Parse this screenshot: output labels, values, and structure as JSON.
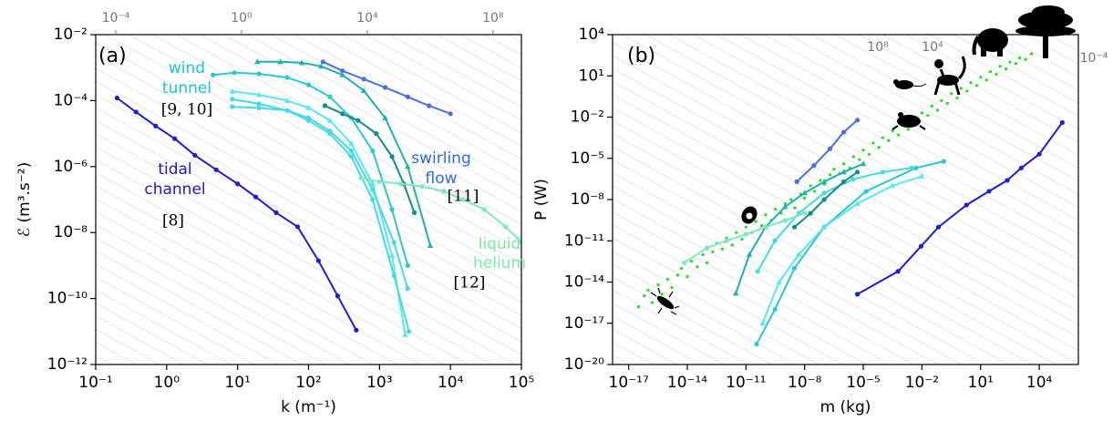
{
  "chart_data": [
    {
      "type": "line",
      "xscale": "log",
      "yscale": "log",
      "xlabel": "k (m⁻¹)",
      "ylabel": "ℰ (m³.s⁻²)",
      "xlim": [
        0.1,
        100000
      ],
      "ylim": [
        1e-12,
        0.01
      ],
      "xticks": [
        {
          "value": 0.1,
          "label": "10⁻¹"
        },
        {
          "value": 1,
          "label": "10⁰"
        },
        {
          "value": 10,
          "label": "10¹"
        },
        {
          "value": 100,
          "label": "10²"
        },
        {
          "value": 1000,
          "label": "10³"
        },
        {
          "value": 10000,
          "label": "10⁴"
        },
        {
          "value": 100000,
          "label": "10⁵"
        }
      ],
      "yticks": [
        {
          "value": 1e-12,
          "label": "10⁻¹²"
        },
        {
          "value": 1e-10,
          "label": "10⁻¹⁰"
        },
        {
          "value": 1e-08,
          "label": "10⁻⁸"
        },
        {
          "value": 1e-06,
          "label": "10⁻⁶"
        },
        {
          "value": 0.0001,
          "label": "10⁻⁴"
        },
        {
          "value": 0.01,
          "label": "10⁻²"
        }
      ],
      "x2lim": [
        2.3e-05,
        800000000
      ],
      "x2ticks": [
        {
          "value": 0.0001,
          "label": "10⁻⁴"
        },
        {
          "value": 1,
          "label": "10⁰"
        },
        {
          "value": 10000,
          "label": "10⁴"
        },
        {
          "value": 100000000,
          "label": "10⁸"
        }
      ],
      "annotations": [
        {
          "text": "(a)",
          "color": "#000000"
        },
        {
          "text": "wind",
          "color": "#1cc4d4"
        },
        {
          "text": "tunnel",
          "color": "#1cc4d4"
        },
        {
          "text": "[9, 10]",
          "color": "#000000",
          "font": "serif"
        },
        {
          "text": "tidal",
          "color": "#1a1acc"
        },
        {
          "text": "channel",
          "color": "#1a1acc"
        },
        {
          "text": "[8]",
          "color": "#000000",
          "font": "serif"
        },
        {
          "text": "swirling",
          "color": "#2f6be0"
        },
        {
          "text": "flow",
          "color": "#2f6be0"
        },
        {
          "text": "[11]",
          "color": "#000000",
          "font": "serif"
        },
        {
          "text": "liquid",
          "color": "#7ee8a8"
        },
        {
          "text": "helium",
          "color": "#7ee8a8"
        },
        {
          "text": "[12]",
          "color": "#000000",
          "font": "serif"
        }
      ],
      "series": [
        {
          "color": "#1f1fd0",
          "marker": "o",
          "x": [
            0.2,
            0.37,
            0.7,
            1.3,
            2.5,
            5,
            10,
            18,
            35,
            70,
            138,
            257,
            470
          ],
          "values": [
            0.00012,
            4.5e-05,
            1.7e-05,
            7e-06,
            2.2e-06,
            8e-07,
            3e-07,
            1.2e-07,
            4e-08,
            1.5e-08,
            1.4e-09,
            1.2e-10,
            1.1e-11
          ]
        },
        {
          "color": "#4a6fdc",
          "marker": "o",
          "x": [
            160,
            300,
            600,
            1200,
            2500,
            5000,
            10000
          ],
          "values": [
            0.0015,
            0.0008,
            0.00045,
            0.00025,
            0.00013,
            7e-05,
            4e-05
          ]
        },
        {
          "color": "#20b0b0",
          "marker": "^",
          "x": [
            19,
            40,
            80,
            150,
            300,
            600,
            1200,
            2500,
            5200
          ],
          "values": [
            0.0015,
            0.0015,
            0.0014,
            0.0011,
            0.0006,
            0.0002,
            3e-05,
            1e-06,
            4e-09
          ]
        },
        {
          "color": "#2cc8d0",
          "marker": "o",
          "x": [
            4.5,
            9,
            20,
            50,
            100,
            200,
            400,
            800,
            1500,
            2500
          ],
          "values": [
            0.0006,
            0.0007,
            0.00065,
            0.0005,
            0.0003,
            0.00013,
            3e-05,
            3e-06,
            5e-08,
            1e-09
          ]
        },
        {
          "color": "#5ae8f0",
          "marker": "^",
          "x": [
            8.4,
            20,
            50,
            100,
            200,
            400,
            800,
            1500,
            2300
          ],
          "values": [
            0.00019,
            0.00015,
            0.0001,
            6e-05,
            2.5e-05,
            5e-06,
            3e-07,
            2e-09,
            8e-12
          ]
        },
        {
          "color": "#3fdce0",
          "marker": "o",
          "x": [
            8.4,
            20,
            50,
            100,
            200,
            400,
            800,
            1600,
            2600
          ],
          "values": [
            0.00011,
            8e-05,
            5e-05,
            2.5e-05,
            1e-05,
            2e-06,
            1e-07,
            5e-10,
            1e-11
          ]
        },
        {
          "color": "#48d8e8",
          "marker": "o",
          "x": [
            8.4,
            20,
            50,
            100,
            200,
            400,
            800,
            1600,
            2500
          ],
          "values": [
            6.5e-05,
            6e-05,
            5e-05,
            3e-05,
            1.2e-05,
            3e-06,
            2e-07,
            5e-09,
            2e-10
          ]
        },
        {
          "color": "#138c8c",
          "marker": "o",
          "x": [
            170,
            300,
            500,
            900,
            1500,
            2200,
            3100
          ],
          "values": [
            7e-05,
            4e-05,
            2.5e-05,
            1e-05,
            2e-06,
            3e-07,
            4e-08
          ]
        },
        {
          "color": "#7de8c4",
          "marker": "o",
          "x": [
            550,
            1000,
            2000,
            4000,
            8000,
            15000,
            30000,
            60000,
            100000
          ],
          "values": [
            4.5e-07,
            3.5e-07,
            3e-07,
            2.5e-07,
            1.8e-07,
            1e-07,
            5e-08,
            1.5e-08,
            5e-09
          ]
        }
      ]
    },
    {
      "type": "line",
      "xscale": "log",
      "yscale": "log",
      "xlabel": "m (kg)",
      "ylabel": "P (W)",
      "xlim": [
        1.5e-18,
        1000000
      ],
      "ylim": [
        1e-20,
        10000
      ],
      "xticks": [
        {
          "value": 1e-17,
          "label": "10⁻¹⁷"
        },
        {
          "value": 1e-14,
          "label": "10⁻¹⁴"
        },
        {
          "value": 1e-11,
          "label": "10⁻¹¹"
        },
        {
          "value": 1e-08,
          "label": "10⁻⁸"
        },
        {
          "value": 1e-05,
          "label": "10⁻⁵"
        },
        {
          "value": 0.01,
          "label": "10⁻²"
        },
        {
          "value": 10,
          "label": "10¹"
        },
        {
          "value": 10000,
          "label": "10⁴"
        }
      ],
      "yticks": [
        {
          "value": 1e-20,
          "label": "10⁻²⁰"
        },
        {
          "value": 1e-17,
          "label": "10⁻¹⁷"
        },
        {
          "value": 1e-14,
          "label": "10⁻¹⁴"
        },
        {
          "value": 1e-11,
          "label": "10⁻¹¹"
        },
        {
          "value": 1e-08,
          "label": "10⁻⁸"
        },
        {
          "value": 1e-05,
          "label": "10⁻⁵"
        },
        {
          "value": 0.01,
          "label": "10⁻²"
        },
        {
          "value": 10,
          "label": "10¹"
        },
        {
          "value": 10000,
          "label": "10⁴"
        }
      ],
      "annotations": [
        {
          "text": "(b)",
          "color": "#000000"
        },
        {
          "text": "10⁸",
          "color": "#777777"
        },
        {
          "text": "10⁴",
          "color": "#777777"
        },
        {
          "text": "10⁻⁴",
          "color": "#777777"
        }
      ],
      "series": [
        {
          "type": "scatter",
          "color": "#22dd22",
          "x": [
            3.2e-17,
            6.3e-17,
            1e-16,
            1.6e-16,
            3.2e-16,
            5e-16,
            1e-15,
            1.6e-15,
            3.2e-15,
            5e-15,
            1e-14,
            1.6e-14,
            3.2e-14,
            6.3e-14,
            1e-13,
            2e-13,
            3.2e-13,
            6.3e-13,
            1e-12,
            2e-12,
            3.2e-12,
            6.3e-12,
            1e-11,
            2e-11,
            3.2e-11,
            6.3e-11,
            1e-10,
            2e-10,
            3.2e-10,
            6.3e-10,
            1e-09,
            2e-09,
            3.2e-09,
            6.3e-09,
            1e-08,
            2e-08,
            3.2e-08,
            6.3e-08,
            1e-07,
            2e-07,
            3.2e-07,
            6.3e-07,
            1e-06,
            2e-06,
            3.2e-06,
            6.3e-06,
            1e-05,
            2e-05,
            3.2e-05,
            6.3e-05,
            0.0001,
            0.0002,
            0.00032,
            0.00063,
            0.001,
            0.002,
            0.0032,
            0.0063,
            0.01,
            0.02,
            0.032,
            0.063,
            0.1,
            0.2,
            0.32,
            0.63,
            1,
            2,
            3.2,
            6.3,
            10,
            20,
            32,
            63,
            100,
            200,
            320,
            630,
            1000,
            2000,
            4000
          ],
          "values": [
            1.6e-16,
            1e-15,
            2.5e-15,
            3.2e-16,
            6.3e-15,
            1.3e-15,
            1.6e-14,
            4e-15,
            3.2e-14,
            1e-13,
            2.5e-14,
            3.2e-13,
            1.3e-13,
            1e-12,
            2.5e-13,
            1.6e-12,
            6.3e-12,
            2.5e-12,
            1.6e-11,
            5e-12,
            4e-11,
            1.3e-11,
            1e-10,
            4e-11,
            2.5e-10,
            1.3e-10,
            7.9e-10,
            3.2e-10,
            2e-09,
            1e-09,
            5e-09,
            1e-08,
            2.5e-09,
            2.5e-08,
            1.3e-08,
            1e-07,
            4e-08,
            2.5e-07,
            1.3e-07,
            6.3e-07,
            1.6e-06,
            7.9e-07,
            4e-06,
            2e-06,
            1.3e-05,
            7.9e-06,
            4e-05,
            2e-05,
            0.00013,
            6.3e-05,
            0.00032,
            0.0002,
            0.001,
            0.0005,
            0.0025,
            0.0013,
            0.0079,
            0.004,
            0.02,
            0.013,
            0.063,
            0.032,
            0.16,
            0.1,
            0.5,
            0.25,
            1.26,
            0.79,
            3.2,
            2,
            7.9,
            5,
            20,
            13,
            50,
            32,
            100,
            79,
            200,
            160,
            400
          ]
        },
        {
          "color": "#1f1fd0",
          "marker": "o",
          "x": [
            5e-06,
            0.0006,
            0.009,
            0.07,
            1.9,
            27,
            230,
            1200,
            10000,
            150000
          ],
          "values": [
            1.3e-15,
            6e-14,
            4e-12,
            1e-10,
            4e-09,
            4e-08,
            2.5e-07,
            2e-06,
            2e-05,
            0.004
          ]
        },
        {
          "color": "#4a6fdc",
          "marker": "o",
          "x": [
            4e-09,
            3e-08,
            2e-07,
            1e-06,
            5e-06
          ],
          "values": [
            2e-07,
            3e-06,
            5e-05,
            0.0008,
            0.006
          ]
        },
        {
          "color": "#20b0b0",
          "marker": "^",
          "x": [
            3e-12,
            1.5e-11,
            1e-10,
            1e-09,
            1e-08,
            1e-07,
            1e-06,
            1e-05
          ],
          "values": [
            1.5e-15,
            1e-12,
            1e-10,
            3e-09,
            3e-08,
            2e-07,
            1e-06,
            4e-06
          ]
        },
        {
          "color": "#2cc8d0",
          "marker": "o",
          "x": [
            3.5e-11,
            3e-10,
            3e-09,
            1e-07,
            1.4e-05,
            0.005,
            0.13
          ],
          "values": [
            3e-19,
            1e-16,
            1e-13,
            1e-10,
            4e-08,
            2e-06,
            6e-06
          ]
        },
        {
          "color": "#5ae8f0",
          "marker": "^",
          "x": [
            7e-11,
            5e-10,
            5e-09,
            1e-07,
            5e-06,
            0.0003,
            0.01
          ],
          "values": [
            1e-17,
            1e-14,
            1e-12,
            1e-10,
            5e-09,
            1e-07,
            5e-07
          ]
        },
        {
          "color": "#3fdce0",
          "marker": "o",
          "x": [
            4e-11,
            3e-10,
            5e-09,
            1e-07,
            3e-06,
            0.0001,
            0.003
          ],
          "values": [
            6e-14,
            1e-11,
            1e-09,
            3e-08,
            3e-07,
            1e-06,
            2e-06
          ]
        },
        {
          "color": "#138c8c",
          "marker": "o",
          "x": [
            3e-09,
            2e-08,
            1e-07,
            1e-06,
            5e-06
          ],
          "values": [
            1e-10,
            1e-09,
            1e-08,
            2e-07,
            1e-06
          ]
        },
        {
          "color": "#7de8c4",
          "marker": "o",
          "x": [
            7e-15,
            1e-13,
            1e-12,
            1e-11,
            1e-10,
            1e-09,
            1e-08
          ],
          "values": [
            2.5e-13,
            3e-12,
            1e-11,
            3e-11,
            1e-10,
            3e-10,
            1e-09
          ]
        }
      ]
    }
  ]
}
